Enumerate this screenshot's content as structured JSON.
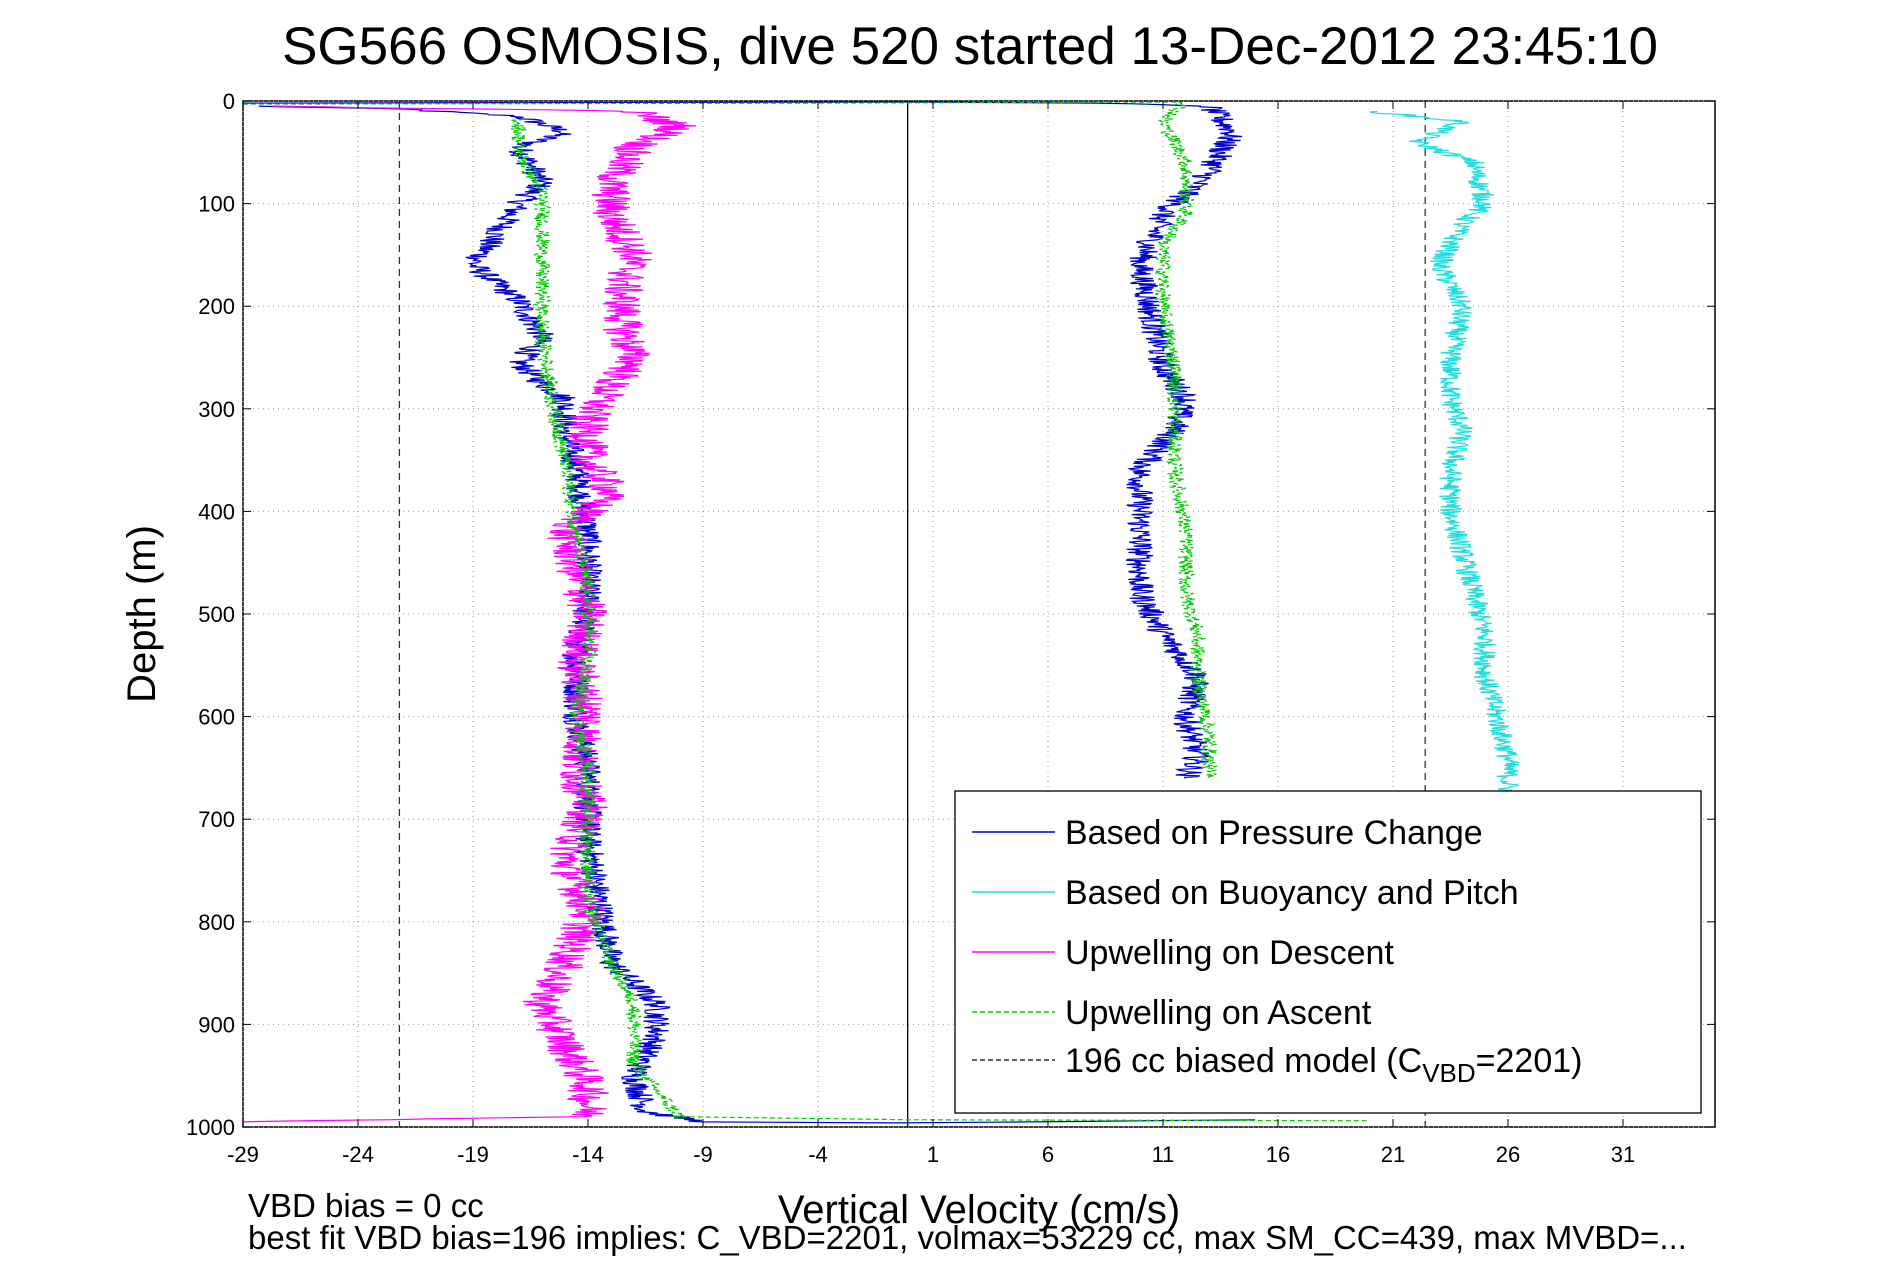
{
  "chart_data": {
    "type": "line",
    "title": "SG566 OSMOSIS, dive 520 started 13-Dec-2012 23:45:10",
    "xlabel": "Vertical Velocity (cm/s)",
    "ylabel": "Depth (m)",
    "xlim": [
      -29,
      35
    ],
    "ylim": [
      1000,
      0
    ],
    "y_reversed": true,
    "grid": true,
    "legend_position": "lower-right",
    "xticks": [
      -29,
      -24,
      -19,
      -14,
      -9,
      -4,
      1,
      6,
      11,
      16,
      21,
      26,
      31
    ],
    "yticks": [
      0,
      100,
      200,
      300,
      400,
      500,
      600,
      700,
      800,
      900,
      1000
    ],
    "xtick_labels": [
      "-29",
      "-24",
      "-19",
      "-14",
      "-9",
      "-4",
      "1",
      "6",
      "11",
      "16",
      "21",
      "26",
      "31"
    ],
    "ytick_labels": [
      "0",
      "100",
      "200",
      "300",
      "400",
      "500",
      "600",
      "700",
      "800",
      "900",
      "1000"
    ],
    "vertical_lines": [
      {
        "x": -22.2,
        "style": "dashed",
        "color": "#333333"
      },
      {
        "x": -0.1,
        "style": "solid",
        "color": "#000000"
      },
      {
        "x": 22.4,
        "style": "dashed",
        "color": "#333333"
      }
    ],
    "legend": [
      {
        "label": "Based on Pressure Change",
        "color": "#0000cc",
        "dash": "solid"
      },
      {
        "label": "Based on Buoyancy and Pitch",
        "color": "#22dddd",
        "dash": "solid"
      },
      {
        "label": "Upwelling on Descent",
        "color": "#ff00ff",
        "dash": "solid"
      },
      {
        "label": "Upwelling on Ascent",
        "color": "#00cc00",
        "dash": "dashed"
      },
      {
        "label": "196 cc biased model (C",
        "sub": "VBD",
        "suffix": "=2201)",
        "color": "#333333",
        "dash": "dashed"
      }
    ],
    "series": [
      {
        "color": "#0000cc",
        "dash": "solid",
        "noise": 0.6,
        "points": [
          [
            -28.5,
            5
          ],
          [
            -22,
            8
          ],
          [
            -17,
            15
          ],
          [
            -15,
            30
          ],
          [
            -17,
            45
          ],
          [
            -16,
            80
          ],
          [
            -17,
            100
          ],
          [
            -18,
            130
          ],
          [
            -19,
            160
          ],
          [
            -17,
            195
          ],
          [
            -16,
            230
          ],
          [
            -17,
            255
          ],
          [
            -16,
            275
          ],
          [
            -15,
            290
          ],
          [
            -15,
            320
          ],
          [
            -14.5,
            360
          ],
          [
            -14,
            420
          ],
          [
            -14,
            480
          ],
          [
            -14.5,
            540
          ],
          [
            -14.5,
            600
          ],
          [
            -14,
            650
          ],
          [
            -14,
            720
          ],
          [
            -13.5,
            780
          ],
          [
            -13,
            840
          ],
          [
            -11,
            880
          ],
          [
            -11,
            910
          ],
          [
            -12,
            950
          ],
          [
            -11.5,
            985
          ],
          [
            -9,
            995
          ],
          [
            0,
            996
          ],
          [
            10,
            994
          ],
          [
            15,
            993
          ]
        ],
        "points2": [
          [
            -29,
            2
          ],
          [
            0,
            1
          ],
          [
            8,
            2
          ],
          [
            13,
            5
          ],
          [
            14,
            30
          ],
          [
            13,
            70
          ],
          [
            11,
            110
          ],
          [
            10,
            160
          ],
          [
            10.5,
            210
          ],
          [
            11,
            260
          ],
          [
            12,
            290
          ],
          [
            11.5,
            320
          ],
          [
            10,
            360
          ],
          [
            10,
            420
          ],
          [
            10,
            480
          ],
          [
            11,
            520
          ],
          [
            12.5,
            560
          ],
          [
            12,
            600
          ],
          [
            12.5,
            640
          ],
          [
            12,
            660
          ]
        ]
      },
      {
        "color": "#22dddd",
        "dash": "solid",
        "noise": 0.5,
        "points": [
          [
            20,
            10
          ],
          [
            24,
            20
          ],
          [
            22,
            40
          ],
          [
            24.5,
            60
          ],
          [
            25,
            100
          ],
          [
            24,
            120
          ],
          [
            23,
            160
          ],
          [
            24,
            200
          ],
          [
            23.5,
            250
          ],
          [
            23.5,
            290
          ],
          [
            24,
            320
          ],
          [
            23.5,
            360
          ],
          [
            23.5,
            400
          ],
          [
            24,
            440
          ],
          [
            24.5,
            480
          ],
          [
            25,
            520
          ],
          [
            25,
            560
          ],
          [
            25.5,
            600
          ],
          [
            26,
            640
          ],
          [
            26,
            675
          ]
        ]
      },
      {
        "color": "#ff00ff",
        "dash": "solid",
        "noise": 0.9,
        "points": [
          [
            -28,
            5
          ],
          [
            -12,
            10
          ],
          [
            -10,
            25
          ],
          [
            -12,
            45
          ],
          [
            -13,
            80
          ],
          [
            -13,
            110
          ],
          [
            -12,
            150
          ],
          [
            -12.5,
            180
          ],
          [
            -12.5,
            220
          ],
          [
            -12,
            255
          ],
          [
            -13,
            275
          ],
          [
            -14,
            310
          ],
          [
            -14,
            350
          ],
          [
            -13,
            380
          ],
          [
            -15,
            420
          ],
          [
            -14.5,
            460
          ],
          [
            -14,
            500
          ],
          [
            -14.5,
            550
          ],
          [
            -14,
            600
          ],
          [
            -14.5,
            650
          ],
          [
            -14,
            690
          ],
          [
            -15,
            740
          ],
          [
            -14,
            790
          ],
          [
            -15,
            840
          ],
          [
            -16,
            880
          ],
          [
            -15,
            920
          ],
          [
            -14,
            960
          ],
          [
            -14,
            990
          ],
          [
            -29,
            995
          ]
        ]
      },
      {
        "color": "#00cc00",
        "dash": "dashed",
        "noise": 0.35,
        "points": [
          [
            -29,
            3
          ],
          [
            -4,
            2
          ],
          [
            12,
            1
          ],
          [
            11,
            20
          ],
          [
            12,
            60
          ],
          [
            12,
            110
          ],
          [
            11,
            140
          ],
          [
            11,
            200
          ],
          [
            11.5,
            260
          ],
          [
            11.5,
            300
          ],
          [
            11.5,
            360
          ],
          [
            12,
            420
          ],
          [
            12,
            480
          ],
          [
            12.5,
            520
          ],
          [
            12.5,
            560
          ],
          [
            13,
            620
          ],
          [
            13,
            660
          ]
        ],
        "points2": [
          [
            -17,
            18
          ],
          [
            -17,
            50
          ],
          [
            -16,
            90
          ],
          [
            -16,
            130
          ],
          [
            -16,
            180
          ],
          [
            -16,
            230
          ],
          [
            -15.5,
            300
          ],
          [
            -15,
            350
          ],
          [
            -14.5,
            420
          ],
          [
            -14,
            480
          ],
          [
            -14,
            540
          ],
          [
            -14.5,
            600
          ],
          [
            -14,
            650
          ],
          [
            -14,
            720
          ],
          [
            -14,
            780
          ],
          [
            -13,
            840
          ],
          [
            -12,
            880
          ],
          [
            -12,
            940
          ],
          [
            -10,
            990
          ],
          [
            0,
            993
          ],
          [
            20,
            994
          ]
        ]
      }
    ]
  },
  "notes": {
    "bias": "VBD bias = 0 cc",
    "fit": "best fit VBD bias=196 implies: C_VBD=2201, volmax=53229 cc, max SM_CC=439, max MVBD=..."
  }
}
